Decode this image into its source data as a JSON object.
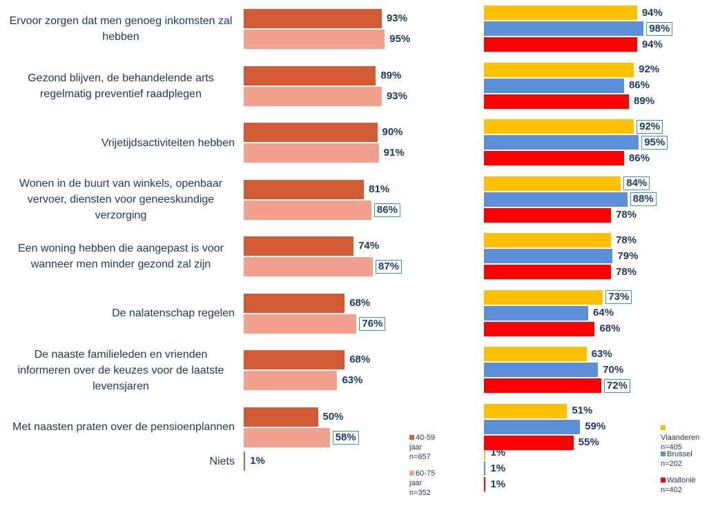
{
  "chart_data": [
    {
      "type": "hbar",
      "categories": [
        "Ervoor zorgen dat men genoeg inkomsten zal hebben",
        "Gezond blijven, de behandelende arts regelmatig preventief raadplegen",
        "Vrijetijdsactiviteiten hebben",
        "Wonen in de buurt van winkels, openbaar vervoer, diensten voor geneeskundige verzorging",
        "Een woning hebben die aangepast is voor wanneer men minder gezond zal zijn",
        "De nalatenschap regelen",
        "De naaste familieleden en vrienden informeren over de keuzes voor de laatste levensjaren",
        "Met naasten praten over de pensioenplannen",
        "Niets"
      ],
      "xlim": [
        0,
        100
      ],
      "series": [
        {
          "name": "40-59 jaar n=657",
          "color": "#d35b33",
          "values": [
            93,
            89,
            90,
            81,
            74,
            68,
            68,
            50,
            1
          ],
          "value_labels": [
            "93%",
            "89%",
            "90%",
            "81%",
            "74%",
            "68%",
            "68%",
            "50%",
            "1%"
          ],
          "boxed": [
            false,
            false,
            false,
            false,
            false,
            false,
            false,
            false,
            false
          ]
        },
        {
          "name": "60-75 jaar n=352",
          "color": "#f4a08e",
          "values": [
            95,
            93,
            91,
            86,
            87,
            76,
            63,
            58,
            null
          ],
          "value_labels": [
            "95%",
            "93%",
            "91%",
            "86%",
            "87%",
            "76%",
            "63%",
            "58%",
            null
          ],
          "boxed": [
            false,
            false,
            false,
            true,
            true,
            true,
            false,
            true,
            false
          ]
        }
      ]
    },
    {
      "type": "hbar",
      "xlim": [
        0,
        100
      ],
      "series": [
        {
          "name": "Vlaanderen n=405",
          "color": "#ffc000",
          "values": [
            94,
            92,
            92,
            84,
            78,
            73,
            63,
            51,
            1
          ],
          "value_labels": [
            "94%",
            "92%",
            "92%",
            "84%",
            "78%",
            "73%",
            "63%",
            "51%",
            "1%"
          ],
          "boxed": [
            false,
            false,
            true,
            true,
            false,
            true,
            false,
            false,
            false
          ]
        },
        {
          "name": "Brussel n=202",
          "color": "#5b8fd8",
          "values": [
            98,
            86,
            95,
            88,
            79,
            64,
            70,
            59,
            1
          ],
          "value_labels": [
            "98%",
            "86%",
            "95%",
            "88%",
            "79%",
            "64%",
            "70%",
            "59%",
            "1%"
          ],
          "boxed": [
            true,
            false,
            true,
            true,
            false,
            false,
            false,
            false,
            false
          ]
        },
        {
          "name": "Wallonië n=402",
          "color": "#ff0000",
          "values": [
            94,
            89,
            86,
            78,
            78,
            68,
            72,
            55,
            1
          ],
          "value_labels": [
            "94%",
            "89%",
            "86%",
            "78%",
            "78%",
            "68%",
            "72%",
            "55%",
            "1%"
          ],
          "boxed": [
            false,
            false,
            false,
            false,
            false,
            false,
            true,
            false,
            false
          ]
        }
      ]
    }
  ]
}
